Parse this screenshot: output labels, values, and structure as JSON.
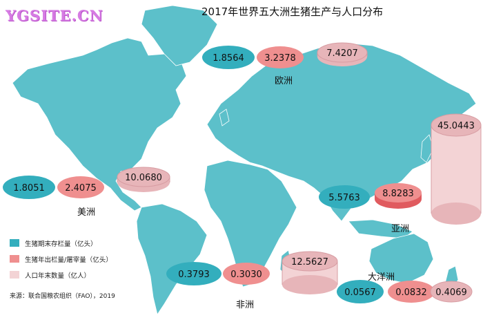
{
  "watermark": "YGSITE.CN",
  "title": "2017年世界五大洲生猪生产与人口分布",
  "colors": {
    "map": "#5cc0ca",
    "stock": "#33aebd",
    "slaughter": "#ef8f8f",
    "population": "#f3d3d5",
    "population_side": "#e7b5b9"
  },
  "legend": [
    {
      "label": "生猪期末存栏量（亿头）",
      "color": "#33aebd"
    },
    {
      "label": "生猪年出栏量/屠宰量（亿头）",
      "color": "#ef8f8f"
    },
    {
      "label": "人口年末数量（亿人）",
      "color": "#f3d3d5"
    }
  ],
  "source": "来源：联合国粮农组织（FAO），2019",
  "regions": [
    {
      "name": "欧洲",
      "stock": "1.8564",
      "slaughter": "3.2378",
      "population": "7.4207"
    },
    {
      "name": "美洲",
      "stock": "1.8051",
      "slaughter": "2.4075",
      "population": "10.0680"
    },
    {
      "name": "亚洲",
      "stock": "5.5763",
      "slaughter": "8.8283",
      "population": "45.0443"
    },
    {
      "name": "非洲",
      "stock": "0.3793",
      "slaughter": "0.3030",
      "population": "12.5627"
    },
    {
      "name": "大洋洲",
      "stock": "0.0567",
      "slaughter": "0.0832",
      "population": "0.4069"
    }
  ]
}
